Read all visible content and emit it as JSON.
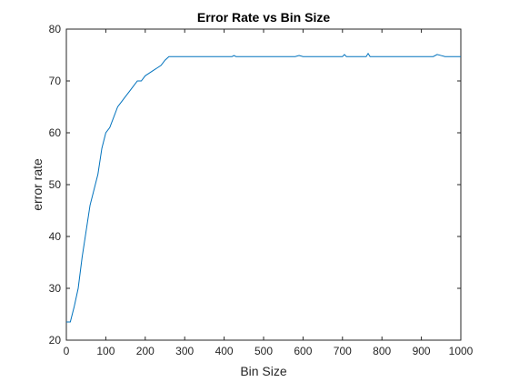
{
  "chart_data": {
    "type": "line",
    "title": "Error Rate vs Bin Size",
    "xlabel": "Bin Size",
    "ylabel": "error rate",
    "xlim": [
      0,
      1000
    ],
    "ylim": [
      20,
      80
    ],
    "xticks": [
      0,
      100,
      200,
      300,
      400,
      500,
      600,
      700,
      800,
      900,
      1000
    ],
    "yticks": [
      20,
      30,
      40,
      50,
      60,
      70,
      80
    ],
    "grid": false,
    "legend": "none",
    "colors": {
      "line": "#0072BD",
      "axis": "#262626"
    },
    "series": [
      {
        "x": [
          0,
          10,
          20,
          30,
          40,
          50,
          60,
          70,
          80,
          90,
          100,
          110,
          120,
          130,
          140,
          150,
          160,
          170,
          180,
          190,
          200,
          210,
          220,
          230,
          240,
          250,
          260,
          270,
          280,
          300,
          350,
          400,
          420,
          425,
          430,
          500,
          580,
          590,
          600,
          650,
          700,
          705,
          710,
          760,
          765,
          770,
          800,
          850,
          900,
          930,
          940,
          950,
          960,
          1000
        ],
        "y": [
          23.5,
          23.5,
          26.5,
          30,
          36,
          41,
          46,
          49,
          52,
          57,
          60,
          61,
          63,
          65,
          66,
          67,
          68,
          69,
          70,
          70,
          71,
          71.5,
          72,
          72.5,
          73,
          74,
          74.7,
          74.7,
          74.7,
          74.7,
          74.7,
          74.7,
          74.7,
          74.9,
          74.7,
          74.7,
          74.7,
          74.9,
          74.7,
          74.7,
          74.7,
          75.1,
          74.7,
          74.7,
          75.3,
          74.7,
          74.7,
          74.7,
          74.7,
          74.7,
          75.1,
          74.9,
          74.7,
          74.7
        ]
      }
    ]
  }
}
